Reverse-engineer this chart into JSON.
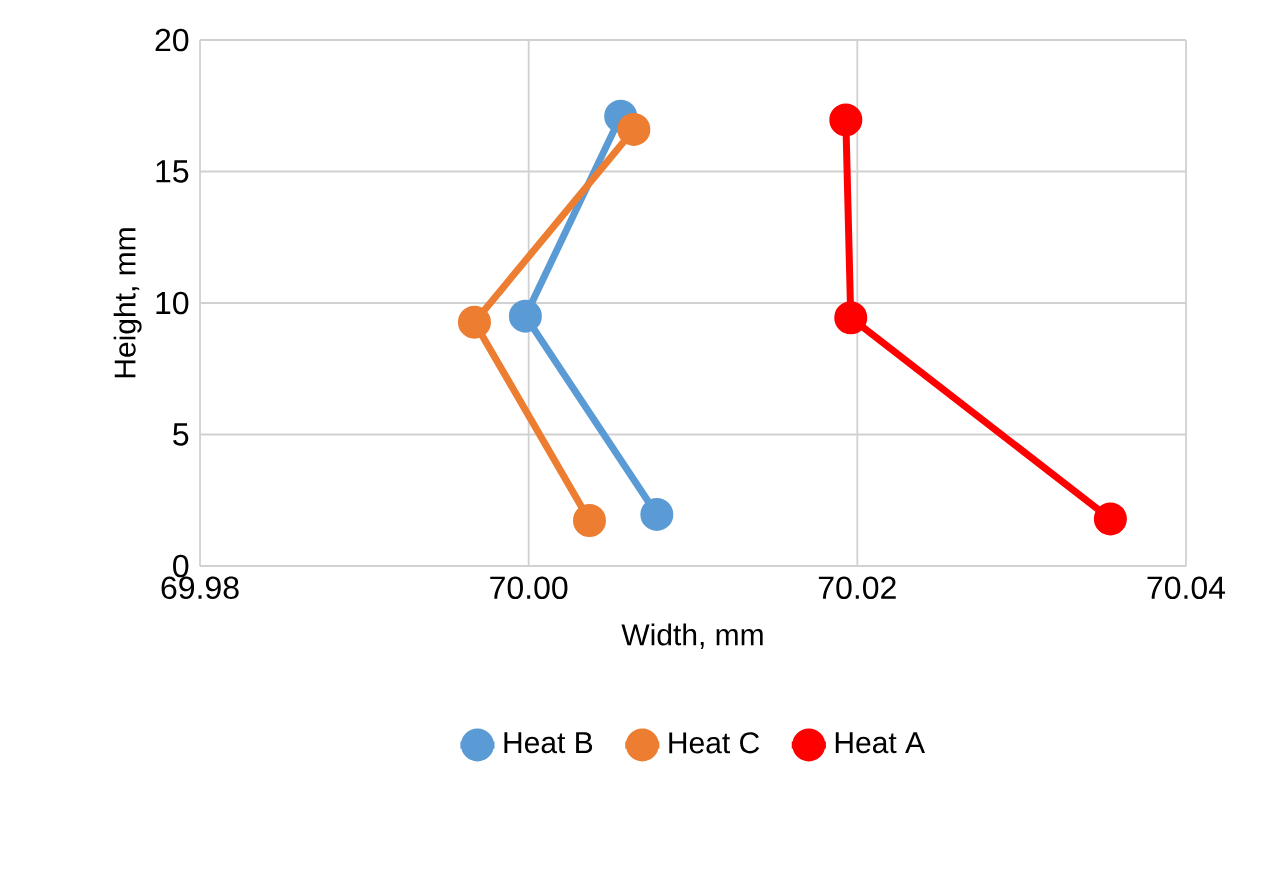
{
  "chart_data": {
    "type": "line",
    "xlabel": "Width, mm",
    "ylabel": "Height, mm",
    "series": [
      {
        "name": "Heat B",
        "color": "#5b9bd5",
        "x": [
          70.0056,
          69.9998,
          70.0078
        ],
        "values": [
          17.1,
          9.5,
          1.96
        ]
      },
      {
        "name": "Heat C",
        "color": "#ed7d31",
        "x": [
          70.0064,
          69.9967,
          70.0037
        ],
        "values": [
          16.6,
          9.27,
          1.73
        ]
      },
      {
        "name": "Heat A",
        "color": "#ff0000",
        "x": [
          70.0193,
          70.0196,
          70.0354
        ],
        "values": [
          16.96,
          9.44,
          1.79
        ]
      }
    ],
    "xlim": [
      69.98,
      70.04
    ],
    "xticks": [
      69.98,
      {
        "value": 70,
        "label": "70.00"
      },
      70.02,
      70.04
    ],
    "ylim": [
      0,
      20
    ],
    "yticks": [
      0,
      5,
      10,
      15,
      20
    ],
    "grid": true,
    "legend": "bottom",
    "marker": "circle",
    "line_style": "solid"
  }
}
